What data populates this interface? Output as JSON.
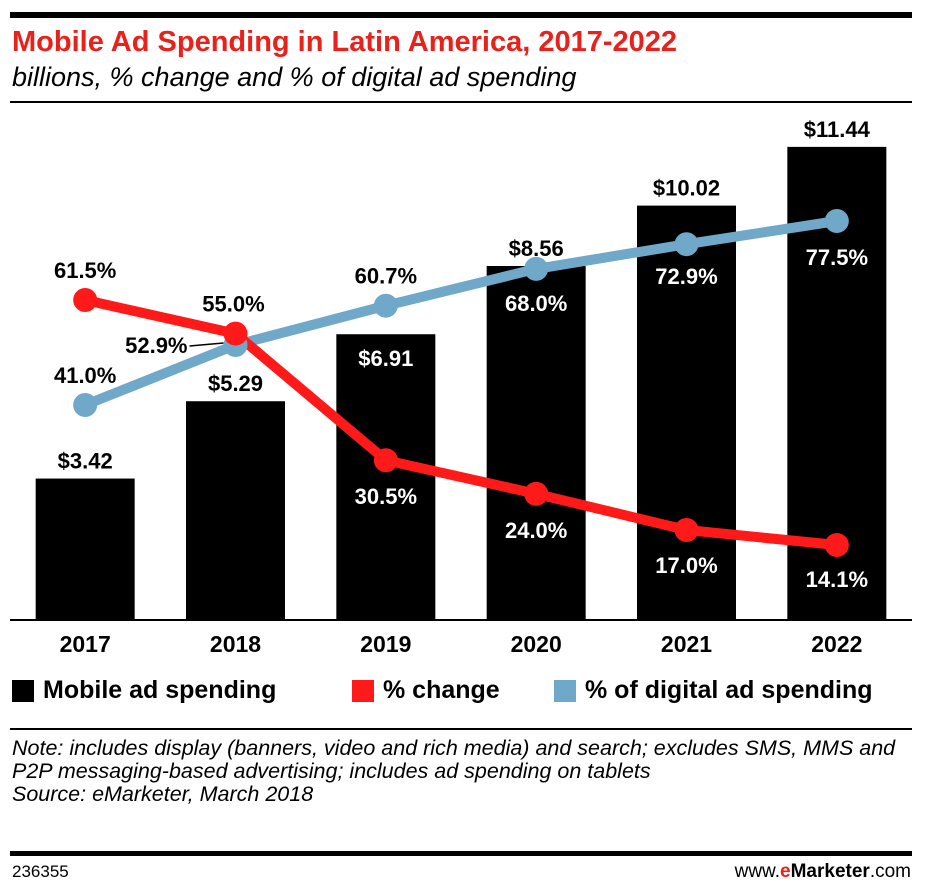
{
  "header": {
    "title": "Mobile Ad Spending in Latin America, 2017-2022",
    "subtitle": "billions, % change and % of digital ad spending"
  },
  "chart_data": {
    "type": "bar",
    "title": "Mobile Ad Spending in Latin America, 2017-2022",
    "subtitle": "billions, % change and % of digital ad spending",
    "categories": [
      "2017",
      "2018",
      "2019",
      "2020",
      "2021",
      "2022"
    ],
    "series": [
      {
        "name": "Mobile ad spending",
        "type": "bar",
        "unit": "billions",
        "values": [
          3.42,
          5.29,
          6.91,
          8.56,
          10.02,
          11.44
        ],
        "labels": [
          "$3.42",
          "$5.29",
          "$6.91",
          "$8.56",
          "$10.02",
          "$11.44"
        ],
        "color": "#000000"
      },
      {
        "name": "% change",
        "type": "line",
        "unit": "%",
        "values": [
          61.5,
          55.0,
          30.5,
          24.0,
          17.0,
          14.1
        ],
        "labels": [
          "61.5%",
          "55.0%",
          "30.5%",
          "24.0%",
          "17.0%",
          "14.1%"
        ],
        "color": "#ff1a1a"
      },
      {
        "name": "% of digital ad spending",
        "type": "line",
        "unit": "%",
        "values": [
          41.0,
          52.9,
          60.7,
          68.0,
          72.9,
          77.5
        ],
        "labels": [
          "41.0%",
          "52.9%",
          "60.7%",
          "68.0%",
          "72.9%",
          "77.5%"
        ],
        "color": "#6fa8c8"
      }
    ],
    "ylim_bars": [
      0,
      12.7
    ],
    "ylim_pct": [
      0,
      100
    ],
    "legend": "bottom"
  },
  "legend": {
    "items": [
      {
        "label": "Mobile ad spending",
        "color": "#000000"
      },
      {
        "label": "% change",
        "color": "#ff1a1a"
      },
      {
        "label": "% of digital ad spending",
        "color": "#6fa8c8"
      }
    ]
  },
  "footer": {
    "note": "Note: includes display (banners, video and rich media) and search; excludes SMS, MMS and P2P messaging-based advertising; includes ad spending on tablets",
    "source": "Source: eMarketer, March 2018",
    "chart_id": "236355",
    "brand_prefix": "www.",
    "brand_e": "e",
    "brand_marketer": "Marketer",
    "brand_suffix": ".com"
  }
}
